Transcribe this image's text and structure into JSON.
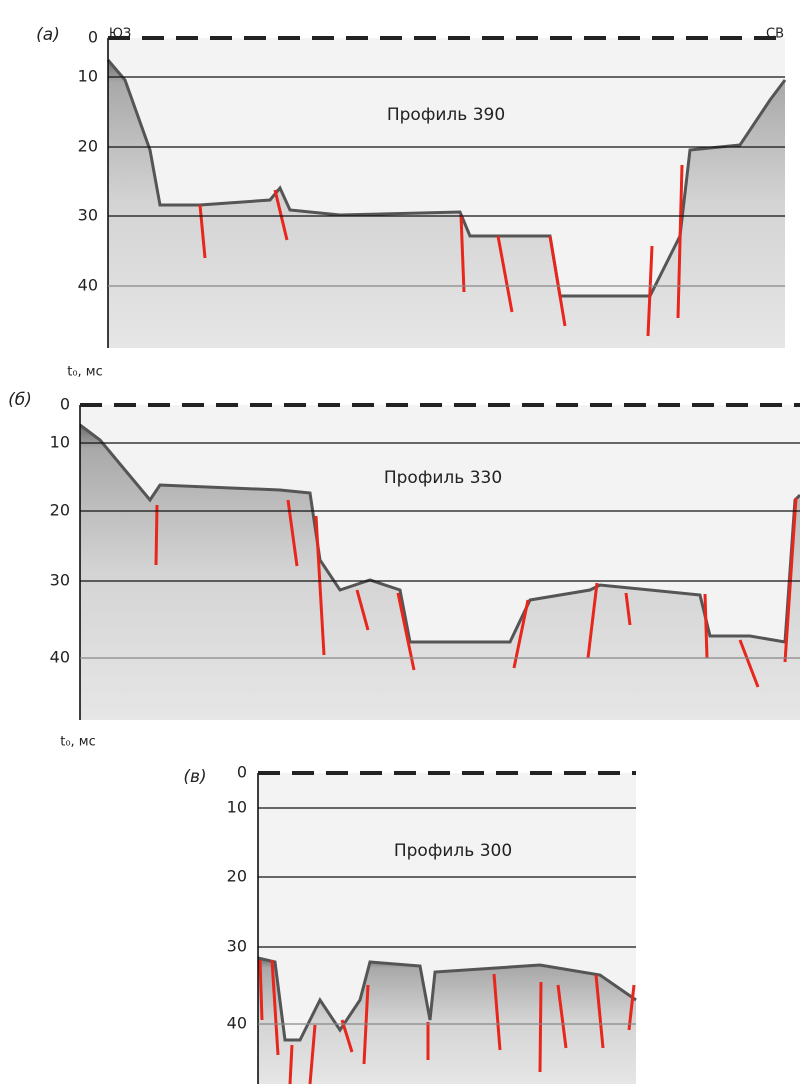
{
  "panels": [
    {
      "label": "(а)",
      "left_label": "ЮЗ",
      "right_label": "СВ",
      "title": "Профиль 390",
      "yticks": [
        0,
        10,
        20,
        30,
        40
      ],
      "axis_label": "t₀, мс"
    },
    {
      "label": "(б)",
      "title": "Профиль 330",
      "yticks": [
        0,
        10,
        20,
        30,
        40
      ],
      "axis_label": "t₀, мс"
    },
    {
      "label": "(в)",
      "title": "Профиль 300",
      "yticks": [
        0,
        10,
        20,
        30,
        40
      ]
    }
  ]
}
